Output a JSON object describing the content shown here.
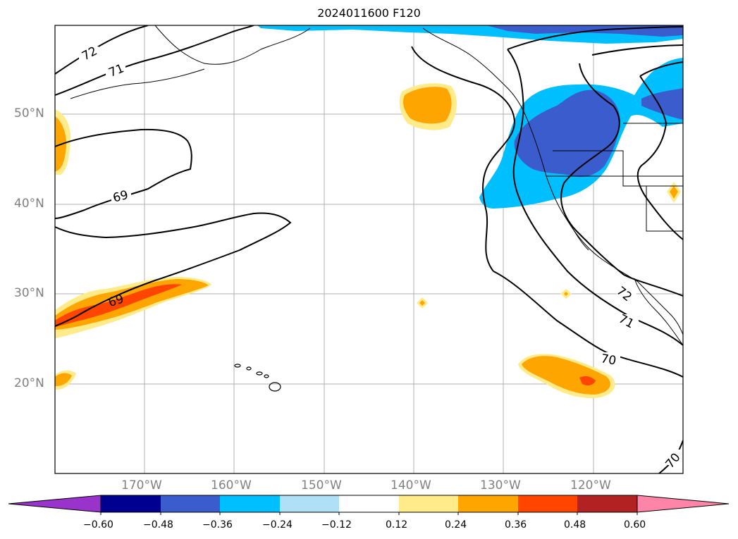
{
  "title": "2024011600 F120",
  "lat_labels": [
    "50°N",
    "40°N",
    "30°N",
    "20°N"
  ],
  "lon_labels": [
    "170°W",
    "160°W",
    "150°W",
    "140°W",
    "130°W",
    "120°W"
  ],
  "contour_labels": [
    "72",
    "71",
    "69",
    "69",
    "72",
    "71",
    "70",
    "70"
  ],
  "colorbar": {
    "ticks": [
      "−0.60",
      "−0.48",
      "−0.36",
      "−0.24",
      "−0.12",
      "0.12",
      "0.24",
      "0.36",
      "0.48",
      "0.60"
    ],
    "colors": [
      "#9933cc",
      "#000090",
      "#3a5ccc",
      "#00bfff",
      "#b0e0f8",
      "#ffffff",
      "#ffeb8a",
      "#ffa500",
      "#ff4500",
      "#b22222",
      "#ff85a8"
    ]
  },
  "colors": {
    "orange": "#ffa500",
    "red_orange": "#ff4500",
    "yellow": "#ffeb8a",
    "sky": "#00bfff",
    "royal": "#3a5ccc"
  }
}
